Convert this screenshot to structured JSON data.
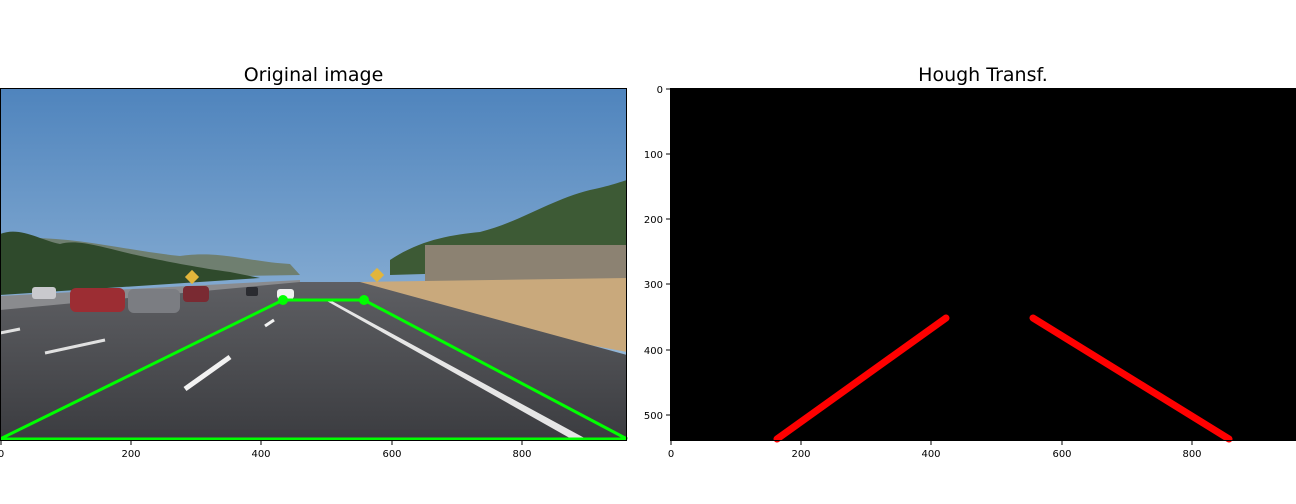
{
  "panels": [
    {
      "title": "Original image",
      "x_ticks": [
        "0",
        "200",
        "400",
        "600",
        "800"
      ],
      "overlay_color": "#00ff00"
    },
    {
      "title": "Hough Transf.",
      "x_ticks": [
        "0",
        "200",
        "400",
        "600",
        "800"
      ],
      "y_ticks": [
        "0",
        "100",
        "200",
        "300",
        "400",
        "500"
      ],
      "background": "#000000",
      "line_color": "#ff0000"
    }
  ]
}
